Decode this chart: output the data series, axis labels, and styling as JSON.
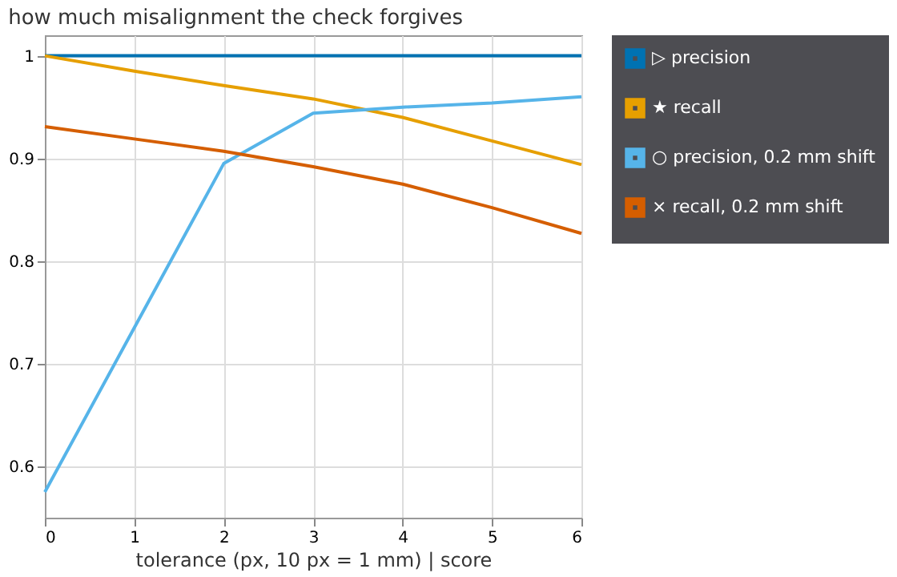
{
  "chart_data": {
    "type": "line",
    "title": "how much misalignment the check forgives",
    "xlabel": "tolerance (px, 10 px = 1 mm)  |  score",
    "x": [
      0,
      1,
      2,
      3,
      4,
      5,
      6
    ],
    "series": [
      {
        "name": "▷ precision",
        "color": "#0072b2",
        "values": [
          1,
          1,
          1,
          1,
          1,
          1,
          1
        ]
      },
      {
        "name": "★ recall",
        "color": "#e69f00",
        "values": [
          1,
          0.985,
          0.971,
          0.958,
          0.94,
          0.917,
          0.894
        ]
      },
      {
        "name": "○ precision, 0.2 mm shift",
        "color": "#56b4e9",
        "values": [
          0.575,
          0.735,
          0.895,
          0.944,
          0.95,
          0.954,
          0.96
        ]
      },
      {
        "name": "× recall, 0.2 mm shift",
        "color": "#d55e00",
        "values": [
          0.931,
          0.919,
          0.907,
          0.892,
          0.875,
          0.852,
          0.827
        ]
      }
    ],
    "xlim": [
      0,
      6
    ],
    "xticks": [
      0,
      1,
      2,
      3,
      4,
      5,
      6
    ],
    "ylim": [
      0.55,
      1.02
    ],
    "yticks": [
      0.6,
      0.7,
      0.8,
      0.9,
      1
    ],
    "grid": true,
    "legend": "top right",
    "marker": "none",
    "line_style": "solid"
  }
}
